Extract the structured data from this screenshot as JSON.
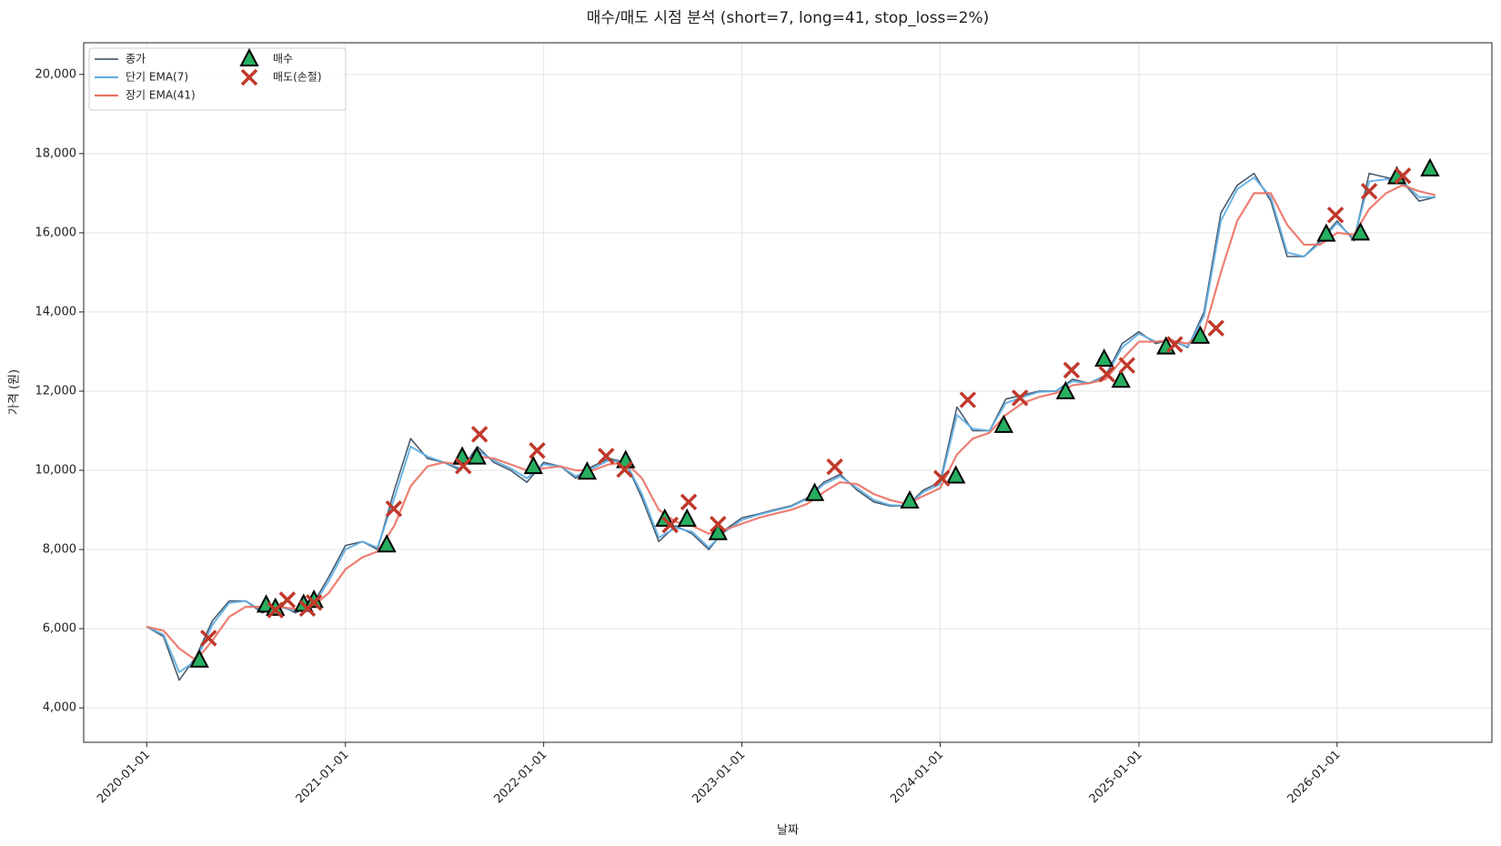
{
  "chart_data": {
    "type": "line",
    "title": "매수/매도 시점 분석 (short=7, long=41, stop_loss=2%)",
    "xlabel": "날짜",
    "ylabel": "가격 (원)",
    "x": [
      "2020-01-01",
      "2020-02-01",
      "2020-03-01",
      "2020-04-01",
      "2020-05-01",
      "2020-06-01",
      "2020-07-01",
      "2020-08-01",
      "2020-09-01",
      "2020-10-01",
      "2020-11-01",
      "2020-12-01",
      "2021-01-01",
      "2021-02-01",
      "2021-03-01",
      "2021-04-01",
      "2021-05-01",
      "2021-06-01",
      "2021-07-01",
      "2021-08-01",
      "2021-09-01",
      "2021-10-01",
      "2021-11-01",
      "2021-12-01",
      "2022-01-01",
      "2022-02-01",
      "2022-03-01",
      "2022-04-01",
      "2022-05-01",
      "2022-06-01",
      "2022-07-01",
      "2022-08-01",
      "2022-09-01",
      "2022-10-01",
      "2022-11-01",
      "2022-12-01",
      "2023-01-01",
      "2023-02-01",
      "2023-03-01",
      "2023-04-01",
      "2023-05-01",
      "2023-06-01",
      "2023-07-01",
      "2023-08-01",
      "2023-09-01",
      "2023-10-01",
      "2023-11-01",
      "2023-12-01",
      "2024-01-01",
      "2024-02-01",
      "2024-03-01",
      "2024-04-01",
      "2024-05-01",
      "2024-06-01",
      "2024-07-01",
      "2024-08-01",
      "2024-09-01",
      "2024-10-01",
      "2024-11-01",
      "2024-12-01",
      "2025-01-01",
      "2025-02-01",
      "2025-03-01",
      "2025-04-01",
      "2025-05-01",
      "2025-06-01",
      "2025-07-01",
      "2025-08-01",
      "2025-09-01",
      "2025-10-01",
      "2025-11-01",
      "2025-12-01",
      "2026-01-01",
      "2026-02-01",
      "2026-03-01",
      "2026-04-01",
      "2026-05-01",
      "2026-06-01",
      "2026-07-01"
    ],
    "series": [
      {
        "name": "종가",
        "color": "#34495e",
        "width": 1.6,
        "values": [
          6050,
          5800,
          4700,
          5300,
          6200,
          6700,
          6700,
          6400,
          6600,
          6400,
          6600,
          7300,
          8100,
          8200,
          8000,
          9500,
          10800,
          10300,
          10200,
          10000,
          10600,
          10200,
          10000,
          9700,
          10200,
          10100,
          9800,
          10100,
          10300,
          10200,
          9300,
          8200,
          8600,
          8400,
          8000,
          8500,
          8800,
          8900,
          9000,
          9100,
          9300,
          9700,
          9900,
          9500,
          9200,
          9100,
          9100,
          9500,
          9700,
          11600,
          11000,
          11000,
          11800,
          11900,
          12000,
          12000,
          12300,
          12200,
          12400,
          13200,
          13500,
          13200,
          13300,
          13100,
          14000,
          16500,
          17200,
          17500,
          16800,
          15400,
          15400,
          15800,
          16300,
          15800,
          17500,
          17400,
          17300,
          16800,
          16900
        ]
      },
      {
        "name": "단기 EMA(7)",
        "color": "#5dade2",
        "width": 2,
        "values": [
          6050,
          5850,
          4900,
          5200,
          6100,
          6650,
          6700,
          6450,
          6550,
          6450,
          6550,
          7200,
          8000,
          8200,
          8050,
          9300,
          10600,
          10350,
          10200,
          10050,
          10500,
          10250,
          10050,
          9800,
          10150,
          10100,
          9850,
          10050,
          10250,
          10200,
          9400,
          8300,
          8550,
          8450,
          8050,
          8450,
          8750,
          8880,
          8980,
          9080,
          9280,
          9650,
          9850,
          9550,
          9250,
          9120,
          9100,
          9450,
          9650,
          11400,
          11050,
          11000,
          11700,
          11850,
          11980,
          12000,
          12250,
          12200,
          12380,
          13100,
          13450,
          13250,
          13280,
          13120,
          13900,
          16300,
          17100,
          17400,
          16900,
          15500,
          15400,
          15750,
          16250,
          15850,
          17300,
          17350,
          17300,
          16900,
          16900
        ]
      },
      {
        "name": "장기 EMA(41)",
        "color": "#ec7063",
        "width": 2.2,
        "values": [
          6050,
          5950,
          5500,
          5200,
          5700,
          6300,
          6550,
          6550,
          6550,
          6500,
          6550,
          6900,
          7500,
          7800,
          7950,
          8600,
          9600,
          10100,
          10200,
          10150,
          10350,
          10300,
          10150,
          10000,
          10050,
          10100,
          10000,
          10000,
          10150,
          10200,
          9800,
          9000,
          8700,
          8600,
          8400,
          8500,
          8650,
          8800,
          8900,
          9000,
          9150,
          9450,
          9700,
          9650,
          9400,
          9250,
          9150,
          9350,
          9550,
          10400,
          10800,
          10950,
          11400,
          11700,
          11850,
          11950,
          12150,
          12200,
          12300,
          12800,
          13250,
          13250,
          13280,
          13200,
          13500,
          15000,
          16300,
          17000,
          17000,
          16200,
          15700,
          15700,
          16000,
          15950,
          16600,
          17000,
          17200,
          17050,
          16950
        ]
      }
    ],
    "markers": [
      {
        "name": "매수",
        "shape": "triangle",
        "color": "#27ae60",
        "x": [
          "2020-04-07",
          "2020-08-08",
          "2020-08-25",
          "2020-10-16",
          "2020-11-04",
          "2021-03-18",
          "2021-08-04",
          "2021-08-31",
          "2021-12-13",
          "2022-03-22",
          "2022-06-01",
          "2022-08-12",
          "2022-09-22",
          "2022-11-18",
          "2023-05-15",
          "2023-11-06",
          "2024-01-30",
          "2024-04-27",
          "2024-08-19",
          "2024-10-29",
          "2024-11-29",
          "2025-02-20",
          "2025-04-24",
          "2025-12-12",
          "2026-02-13",
          "2026-04-21",
          "2026-06-21"
        ],
        "values": [
          5200,
          6590,
          6510,
          6610,
          6710,
          8110,
          10330,
          10330,
          10090,
          9950,
          10240,
          8760,
          8760,
          8420,
          9410,
          9220,
          9850,
          11130,
          11980,
          12800,
          12270,
          13110,
          13380,
          15960,
          15990,
          17410,
          17610
        ]
      },
      {
        "name": "매도(손절)",
        "shape": "x",
        "color": "#c0392b",
        "x": [
          "2020-04-24",
          "2020-08-25",
          "2020-09-16",
          "2020-10-23",
          "2020-11-04",
          "2021-03-31",
          "2021-08-06",
          "2021-09-05",
          "2021-12-20",
          "2022-04-26",
          "2022-05-30",
          "2022-08-22",
          "2022-09-25",
          "2022-11-18",
          "2023-06-21",
          "2024-01-04",
          "2024-02-21",
          "2024-05-27",
          "2024-08-30",
          "2024-11-03",
          "2024-12-10",
          "2025-03-08",
          "2025-05-23",
          "2025-12-29",
          "2026-03-01",
          "2026-05-02"
        ],
        "values": [
          5760,
          6470,
          6730,
          6510,
          6660,
          9030,
          10110,
          10910,
          10500,
          10360,
          10020,
          8620,
          9200,
          8640,
          10090,
          9800,
          11780,
          11830,
          12530,
          12430,
          12650,
          13180,
          13590,
          16450,
          17050,
          17440
        ]
      }
    ],
    "xlim": [
      "2019-09-07",
      "2026-10-13"
    ],
    "xticks": [
      "2020-01-01",
      "2021-01-01",
      "2022-01-01",
      "2023-01-01",
      "2024-01-01",
      "2025-01-01",
      "2026-01-01"
    ],
    "ylim": [
      3130,
      20800
    ],
    "yticks": [
      {
        "value": 4000,
        "label": "4,000"
      },
      {
        "value": 6000,
        "label": "6,000"
      },
      {
        "value": 8000,
        "label": "8,000"
      },
      {
        "value": 10000,
        "label": "10,000"
      },
      {
        "value": 12000,
        "label": "12,000"
      },
      {
        "value": 14000,
        "label": "14,000"
      },
      {
        "value": 16000,
        "label": "16,000"
      },
      {
        "value": 18000,
        "label": "18,000"
      },
      {
        "value": 20000,
        "label": "20,000"
      }
    ],
    "grid": true,
    "legend": "upper-left"
  }
}
